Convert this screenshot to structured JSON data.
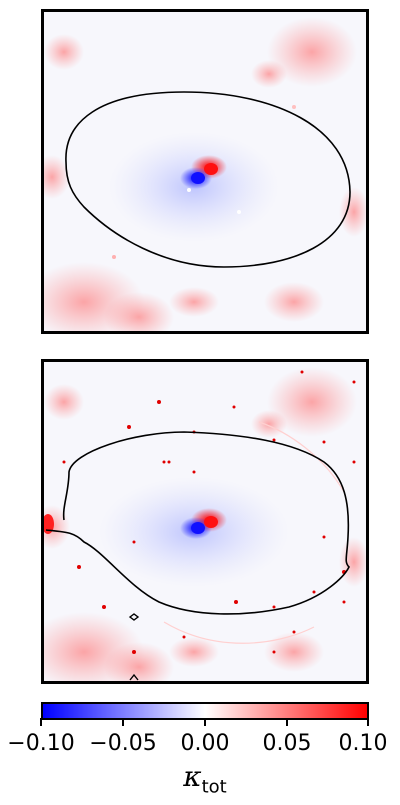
{
  "figure": {
    "panels": [
      {
        "name": "panel-top"
      },
      {
        "name": "panel-bottom"
      }
    ]
  },
  "colorbar": {
    "colors": [
      "#0000ff",
      "#ffffff",
      "#ff0000"
    ],
    "ticks": [
      "−0.10",
      "−0.05",
      "0.00",
      "0.05",
      "0.10"
    ],
    "label_symbol": "κ",
    "label_sub": "tot"
  }
}
